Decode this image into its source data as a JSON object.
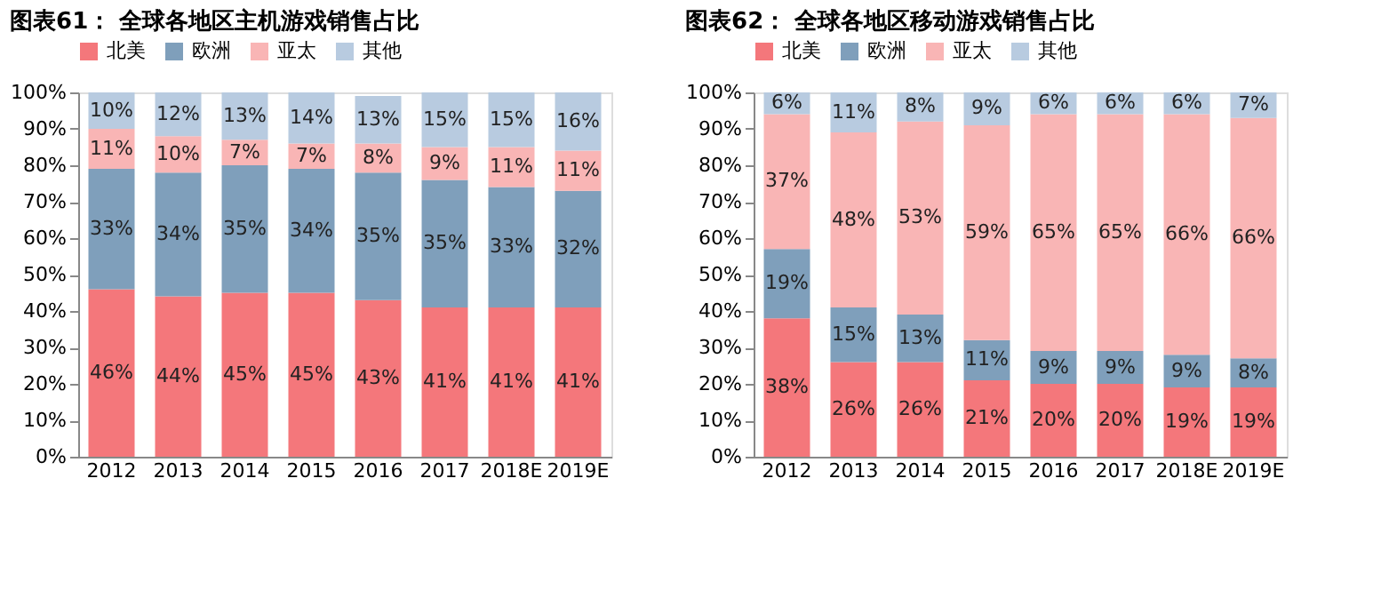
{
  "chart_data": [
    {
      "type": "bar",
      "title": "图表61：  全球各地区主机游戏销售占比",
      "stacked": true,
      "legend": "top",
      "grid": false,
      "categories": [
        "2012",
        "2013",
        "2014",
        "2015",
        "2016",
        "2017",
        "2018E",
        "2019E"
      ],
      "ylim": [
        0,
        100
      ],
      "yticks": [
        {
          "value": 0,
          "label": "0%"
        },
        {
          "value": 10,
          "label": "10%"
        },
        {
          "value": 20,
          "label": "20%"
        },
        {
          "value": 30,
          "label": "30%"
        },
        {
          "value": 40,
          "label": "40%"
        },
        {
          "value": 50,
          "label": "50%"
        },
        {
          "value": 60,
          "label": "60%"
        },
        {
          "value": 70,
          "label": "70%"
        },
        {
          "value": 80,
          "label": "80%"
        },
        {
          "value": 90,
          "label": "90%"
        },
        {
          "value": 100,
          "label": "100%"
        }
      ],
      "series": [
        {
          "name": "北美",
          "color": "#f4777b",
          "values": [
            46,
            44,
            45,
            45,
            43,
            41,
            41,
            41
          ],
          "value_labels": [
            "46%",
            "44%",
            "45%",
            "45%",
            "43%",
            "41%",
            "41%",
            "41%"
          ]
        },
        {
          "name": "欧洲",
          "color": "#7f9fbb",
          "values": [
            33,
            34,
            35,
            34,
            35,
            35,
            33,
            32
          ],
          "value_labels": [
            "33%",
            "34%",
            "35%",
            "34%",
            "35%",
            "35%",
            "33%",
            "32%"
          ]
        },
        {
          "name": "亚太",
          "color": "#f9b5b5",
          "values": [
            11,
            10,
            7,
            7,
            8,
            9,
            11,
            11
          ],
          "value_labels": [
            "11%",
            "10%",
            "7%",
            "7%",
            "8%",
            "9%",
            "11%",
            "11%"
          ]
        },
        {
          "name": "其他",
          "color": "#b8cbe0",
          "values": [
            10,
            12,
            13,
            14,
            13,
            15,
            15,
            16
          ],
          "value_labels": [
            "10%",
            "12%",
            "13%",
            "14%",
            "13%",
            "15%",
            "15%",
            "16%"
          ]
        }
      ]
    },
    {
      "type": "bar",
      "title": "图表62：  全球各地区移动游戏销售占比",
      "stacked": true,
      "legend": "top",
      "grid": false,
      "categories": [
        "2012",
        "2013",
        "2014",
        "2015",
        "2016",
        "2017",
        "2018E",
        "2019E"
      ],
      "ylim": [
        0,
        100
      ],
      "yticks": [
        {
          "value": 0,
          "label": "0%"
        },
        {
          "value": 10,
          "label": "10%"
        },
        {
          "value": 20,
          "label": "20%"
        },
        {
          "value": 30,
          "label": "30%"
        },
        {
          "value": 40,
          "label": "40%"
        },
        {
          "value": 50,
          "label": "50%"
        },
        {
          "value": 60,
          "label": "60%"
        },
        {
          "value": 70,
          "label": "70%"
        },
        {
          "value": 80,
          "label": "80%"
        },
        {
          "value": 90,
          "label": "90%"
        },
        {
          "value": 100,
          "label": "100%"
        }
      ],
      "series": [
        {
          "name": "北美",
          "color": "#f4777b",
          "values": [
            38,
            26,
            26,
            21,
            20,
            20,
            19,
            19
          ],
          "value_labels": [
            "38%",
            "26%",
            "26%",
            "21%",
            "20%",
            "20%",
            "19%",
            "19%"
          ]
        },
        {
          "name": "欧洲",
          "color": "#7f9fbb",
          "values": [
            19,
            15,
            13,
            11,
            9,
            9,
            9,
            8
          ],
          "value_labels": [
            "19%",
            "15%",
            "13%",
            "11%",
            "9%",
            "9%",
            "9%",
            "8%"
          ]
        },
        {
          "name": "亚太",
          "color": "#f9b5b5",
          "values": [
            37,
            48,
            53,
            59,
            65,
            65,
            66,
            66
          ],
          "value_labels": [
            "37%",
            "48%",
            "53%",
            "59%",
            "65%",
            "65%",
            "66%",
            "66%"
          ]
        },
        {
          "name": "其他",
          "color": "#b8cbe0",
          "values": [
            6,
            11,
            8,
            9,
            6,
            6,
            6,
            7
          ],
          "value_labels": [
            "6%",
            "11%",
            "8%",
            "9%",
            "6%",
            "6%",
            "6%",
            "7%"
          ]
        }
      ]
    }
  ]
}
